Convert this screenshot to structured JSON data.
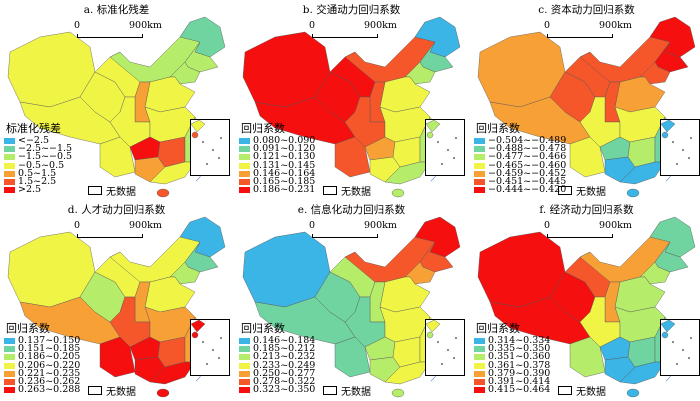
{
  "palette": [
    "#3bb4e6",
    "#6fd4a0",
    "#b5ec6a",
    "#f0f545",
    "#f7a035",
    "#f5562a",
    "#f50f0f"
  ],
  "scale_bar": {
    "zero": "0",
    "distance": "900km"
  },
  "no_data_label": "无数据",
  "panels": [
    {
      "title": "a. 标准化残差",
      "legend_title": "标准化残差",
      "classes": [
        "<−2.5",
        "−2.5~−1.5",
        "−1.5~−0.5",
        "−0.5~0.5",
        "0.5~1.5",
        "1.5~2.5",
        ">2.5"
      ],
      "region_classes": {
        "XJ": 3,
        "XZ": 3,
        "QH": 3,
        "GS": 3,
        "NM": 2,
        "HLJ": 1,
        "JL": 2,
        "LN": 2,
        "NORTH": 3,
        "SN": 4,
        "SC": 3,
        "CEN": 3,
        "YN": 3,
        "GZ": 6,
        "HUN": 5,
        "ZJ": 2,
        "GD": 3,
        "GX": 4,
        "HAIN": 5
      }
    },
    {
      "title": "b. 交通动力回归系数",
      "legend_title": "回归系数",
      "classes": [
        "0.080~0.090",
        "0.091~0.120",
        "0.121~0.130",
        "0.131~0.145",
        "0.146~0.164",
        "0.165~0.185",
        "0.186~0.231"
      ],
      "region_classes": {
        "XJ": 6,
        "XZ": 6,
        "QH": 6,
        "GS": 6,
        "NM": 5,
        "HLJ": 0,
        "JL": 1,
        "LN": 2,
        "NORTH": 3,
        "SN": 5,
        "SC": 5,
        "CEN": 3,
        "YN": 5,
        "GZ": 4,
        "HUN": 3,
        "ZJ": 2,
        "GD": 2,
        "GX": 3,
        "HAIN": 2
      }
    },
    {
      "title": "c. 资本动力回归系数",
      "legend_title": "回归系数",
      "classes": [
        "−0.504~−0.489",
        "−0.488~−0.478",
        "−0.477~−0.466",
        "−0.465~−0.460",
        "−0.459~−0.452",
        "−0.451~−0.445",
        "−0.444~−0.420"
      ],
      "region_classes": {
        "XJ": 4,
        "XZ": 4,
        "QH": 5,
        "GS": 5,
        "NM": 5,
        "HLJ": 6,
        "JL": 6,
        "LN": 5,
        "NORTH": 4,
        "SN": 5,
        "SC": 3,
        "CEN": 3,
        "YN": 3,
        "GZ": 1,
        "HUN": 2,
        "ZJ": 1,
        "GD": 0,
        "GX": 0,
        "HAIN": 0
      }
    },
    {
      "title": "d. 人才动力回归系数",
      "legend_title": "回归系数",
      "classes": [
        "0.137~0.150",
        "0.151~0.185",
        "0.186~0.205",
        "0.206~0.220",
        "0.221~0.235",
        "0.236~0.262",
        "0.263~0.288"
      ],
      "region_classes": {
        "XJ": 3,
        "XZ": 4,
        "QH": 2,
        "GS": 3,
        "NM": 3,
        "HLJ": 0,
        "JL": 1,
        "LN": 2,
        "NORTH": 3,
        "SN": 4,
        "SC": 5,
        "CEN": 4,
        "YN": 6,
        "GZ": 6,
        "HUN": 5,
        "ZJ": 4,
        "GD": 6,
        "GX": 6,
        "HAIN": 6
      }
    },
    {
      "title": "e. 信息化动力回归系数",
      "legend_title": "回归系数",
      "classes": [
        "0.146~0.184",
        "0.185~0.212",
        "0.213~0.232",
        "0.233~0.249",
        "0.250~0.277",
        "0.278~0.322",
        "0.323~0.350"
      ],
      "region_classes": {
        "XJ": 0,
        "XZ": 1,
        "QH": 1,
        "GS": 2,
        "NM": 5,
        "HLJ": 6,
        "JL": 5,
        "LN": 4,
        "NORTH": 3,
        "SN": 2,
        "SC": 1,
        "CEN": 3,
        "YN": 1,
        "GZ": 2,
        "HUN": 3,
        "ZJ": 3,
        "GD": 3,
        "GX": 2,
        "HAIN": 2
      }
    },
    {
      "title": "f. 经济动力回归系数",
      "legend_title": "回归系数",
      "classes": [
        "0.314~0.334",
        "0.335~0.350",
        "0.351~0.360",
        "0.361~0.378",
        "0.379~0.390",
        "0.391~0.414",
        "0.415~0.464"
      ],
      "region_classes": {
        "XJ": 6,
        "XZ": 6,
        "QH": 6,
        "GS": 5,
        "NM": 4,
        "HLJ": 1,
        "JL": 1,
        "LN": 2,
        "NORTH": 2,
        "SN": 4,
        "SC": 3,
        "CEN": 2,
        "YN": 2,
        "GZ": 0,
        "HUN": 1,
        "ZJ": 1,
        "GD": 0,
        "GX": 0,
        "HAIN": 0
      }
    }
  ]
}
